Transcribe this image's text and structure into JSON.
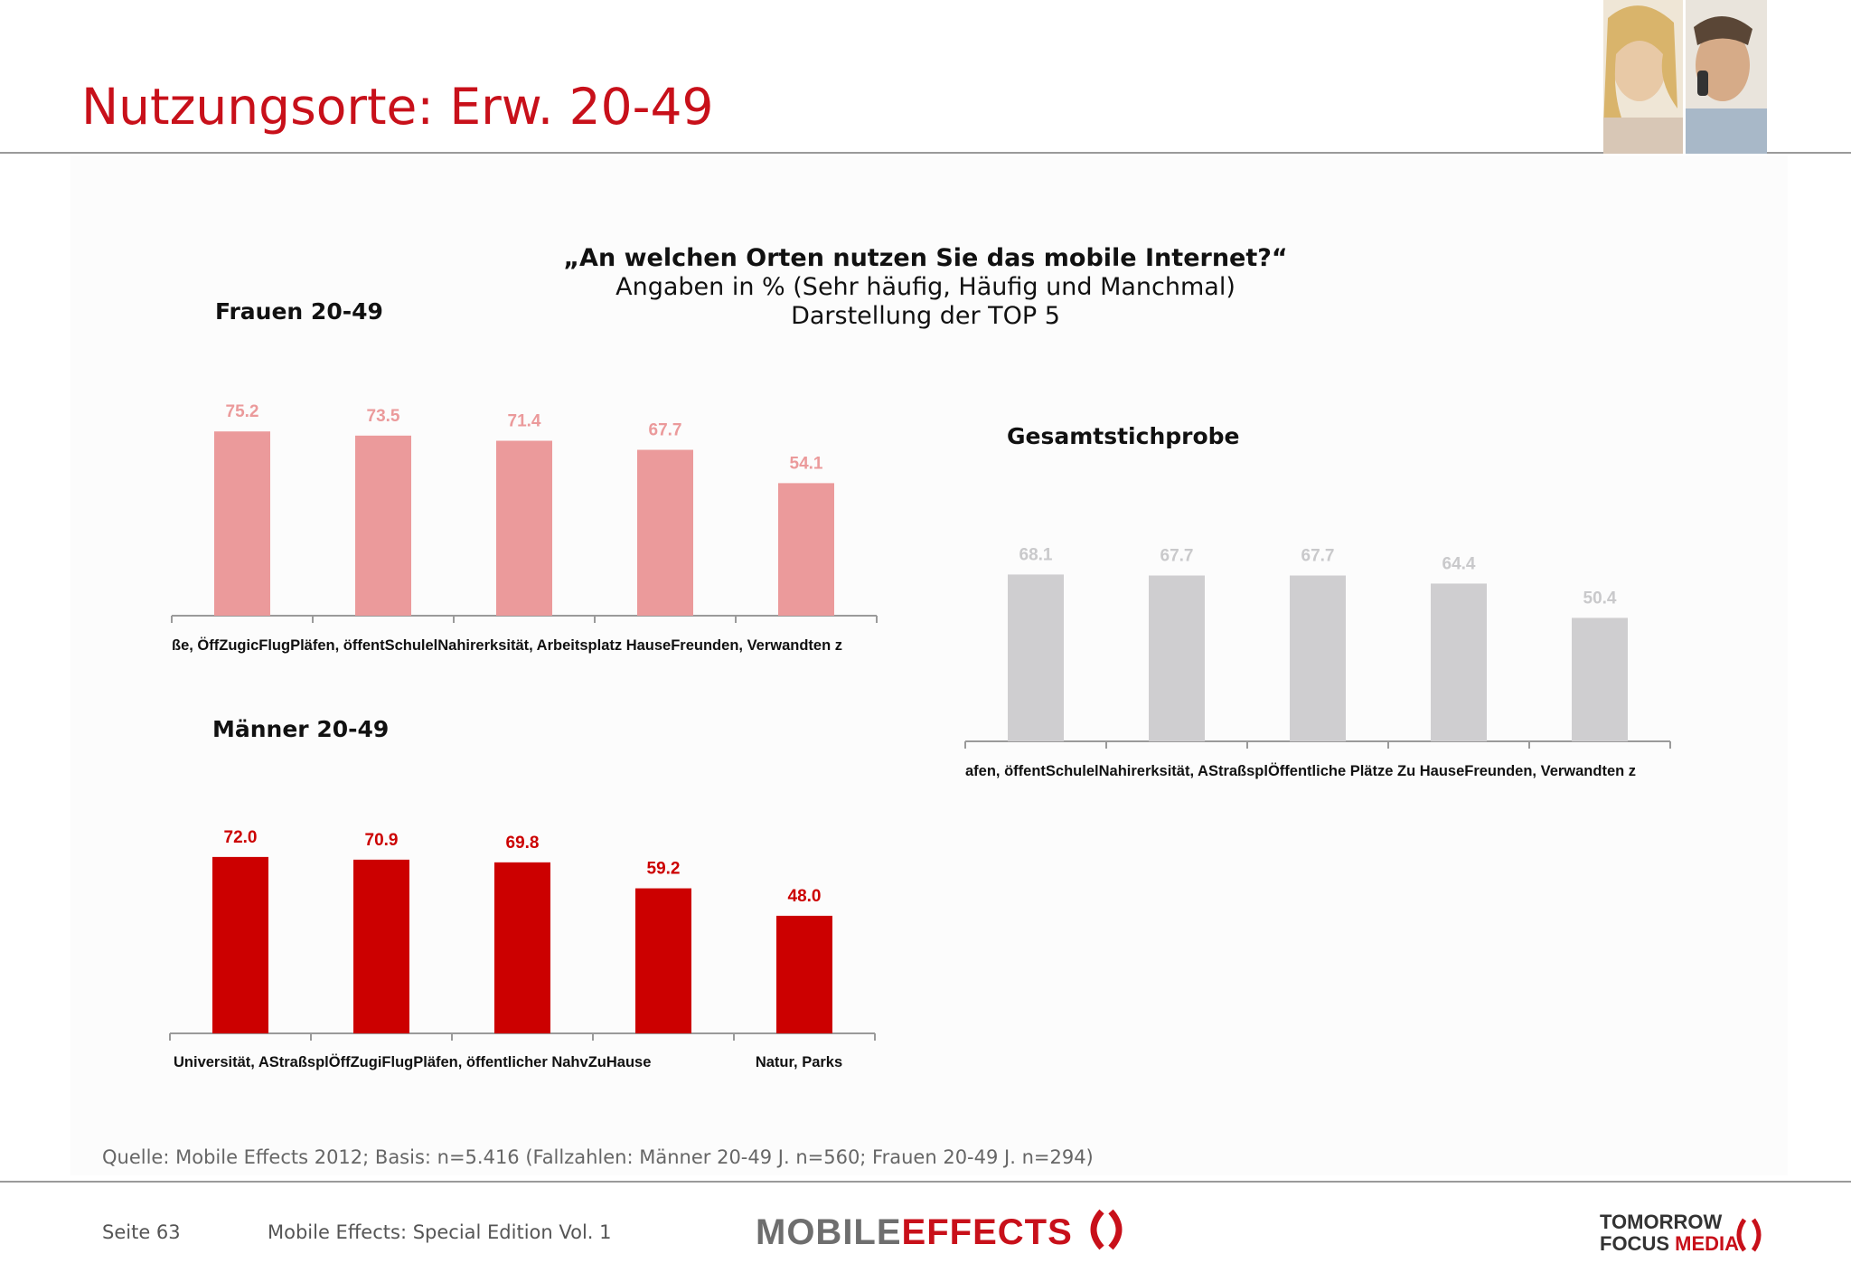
{
  "header": {
    "title": "Nutzungsorte: Erw. 20-49"
  },
  "question": {
    "line1": "„An welchen Orten nutzen Sie das mobile Internet?“",
    "line2": "Angaben in % (Sehr häufig, Häufig und Manchmal)",
    "line3": "Darstellung der TOP 5"
  },
  "colors": {
    "frauen": "#eb9a9b",
    "frauen_label": "#eb9a9b",
    "maenner": "#cc0000",
    "maenner_label": "#cc0000",
    "gesamt": "#cfced0",
    "gesamt_label": "#c9c9cb",
    "brand_red": "#c8101a"
  },
  "chart_data": [
    {
      "type": "bar",
      "title": "Frauen 20-49",
      "categories": [
        "Straße, Öffentliche Plätze",
        "Zug, Flughafen, öffentlicher Nahverkehr",
        "Schule, Universität, Arbeitsplatz",
        "Zu Hause",
        "Bei Freunden, Verwandten z"
      ],
      "category_labels_visible": "ße, ÖffZugicFlugPläfen, öffentSchulelNahirerksität, Arbeitsplatz HauseFreunden, Verwandten z",
      "values": [
        75.2,
        73.5,
        71.4,
        67.7,
        54.1
      ],
      "value_labels": [
        "75.2",
        "73.5",
        "71.4",
        "67.7",
        "54.1"
      ]
    },
    {
      "type": "bar",
      "title": "Männer 20-49",
      "categories": [
        "Universität, Arbeitsplatz",
        "Straße, Öffentliche Plätze",
        "Zug, Flughafen, öffentlicher Nahverkehr",
        "Zu Hause",
        "Natur, Parks"
      ],
      "category_labels_visible": [
        "Universität, AStraßsplÖffZugiFlugPläfen, öffentlicher NahvZuHause",
        "",
        "",
        "",
        "Natur, Parks"
      ],
      "values": [
        72.0,
        70.9,
        69.8,
        59.2,
        48.0
      ],
      "value_labels": [
        "72.0",
        "70.9",
        "69.8",
        "59.2",
        "48.0"
      ]
    },
    {
      "type": "bar",
      "title": "Gesamtstichprobe",
      "categories": [
        "Zug, Flughafen, öffentlicher Nahverkehr",
        "Schule, Universität, Arbeitsplatz",
        "Straße, Öffentliche Plätze",
        "Zu Hause",
        "Bei Freunden, Verwandten z"
      ],
      "category_labels_visible": "afen, öffentSchulelNahirerksität, AStraßsplÖffentliche Plätze Zu HauseFreunden, Verwandten z",
      "values": [
        68.1,
        67.7,
        67.7,
        64.4,
        50.4
      ],
      "value_labels": [
        "68.1",
        "67.7",
        "67.7",
        "64.4",
        "50.4"
      ]
    }
  ],
  "source": "Quelle: Mobile Effects 2012; Basis: n=5.416 (Fallzahlen: Männer 20-49 J. n=560; Frauen 20-49 J. n=294)",
  "footer": {
    "page": "Seite 63",
    "publication": "Mobile Effects: Special Edition Vol. 1",
    "logo_left_1": "MOBILE",
    "logo_left_2": "EFFECTS",
    "logo_right_1": "TOMORROW",
    "logo_right_2": "FOCUS",
    "logo_right_3": "MEDIA"
  }
}
